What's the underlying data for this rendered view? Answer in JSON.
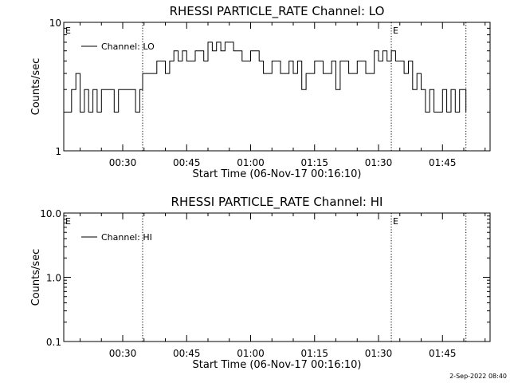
{
  "timestamp": "2-Sep-2022 08:40",
  "chart_data": [
    {
      "type": "line",
      "title": "RHESSI PARTICLE_RATE Channel: LO",
      "xlabel": "Start Time (06-Nov-17 00:16:10)",
      "ylabel": "Counts/sec",
      "y_scale": "log",
      "ylim": [
        1,
        10
      ],
      "y_ticks": [
        "1",
        "10"
      ],
      "xlim": [
        "00:16:10",
        "01:56:10"
      ],
      "x_ticks": [
        "00:30",
        "00:45",
        "01:00",
        "01:15",
        "01:30",
        "01:45"
      ],
      "x_tick_values": [
        "00:30",
        "00:45",
        "01:00",
        "01:15",
        "01:30",
        "01:45"
      ],
      "vlines": [
        "00:34:40",
        "01:33:00",
        "01:50:30"
      ],
      "markers": [
        {
          "label": "E",
          "x": "00:16:10"
        },
        {
          "label": "E",
          "x": "01:33:00"
        }
      ],
      "legend": {
        "position": "top-left",
        "entries": [
          "Channel: LO"
        ]
      },
      "series": [
        {
          "name": "Channel: LO",
          "points": [
            [
              "00:16:10",
              2
            ],
            [
              "00:18:00",
              3
            ],
            [
              "00:19:00",
              4
            ],
            [
              "00:20:00",
              2
            ],
            [
              "00:21:00",
              3
            ],
            [
              "00:22:00",
              2
            ],
            [
              "00:23:00",
              3
            ],
            [
              "00:24:00",
              2
            ],
            [
              "00:25:00",
              3
            ],
            [
              "00:28:00",
              2
            ],
            [
              "00:29:00",
              3
            ],
            [
              "00:33:00",
              2
            ],
            [
              "00:34:00",
              3
            ],
            [
              "00:34:40",
              4
            ],
            [
              "00:38:00",
              5
            ],
            [
              "00:40:00",
              4
            ],
            [
              "00:41:00",
              5
            ],
            [
              "00:42:00",
              6
            ],
            [
              "00:43:00",
              5
            ],
            [
              "00:44:00",
              6
            ],
            [
              "00:45:00",
              5
            ],
            [
              "00:47:00",
              6
            ],
            [
              "00:49:00",
              5
            ],
            [
              "00:50:00",
              7
            ],
            [
              "00:51:00",
              6
            ],
            [
              "00:52:00",
              7
            ],
            [
              "00:53:00",
              6
            ],
            [
              "00:54:00",
              7
            ],
            [
              "00:56:00",
              6
            ],
            [
              "00:58:00",
              5
            ],
            [
              "01:00:00",
              6
            ],
            [
              "01:02:00",
              5
            ],
            [
              "01:03:00",
              4
            ],
            [
              "01:05:00",
              5
            ],
            [
              "01:07:00",
              4
            ],
            [
              "01:09:00",
              5
            ],
            [
              "01:10:00",
              4
            ],
            [
              "01:11:00",
              5
            ],
            [
              "01:12:00",
              3
            ],
            [
              "01:13:00",
              4
            ],
            [
              "01:15:00",
              5
            ],
            [
              "01:17:00",
              4
            ],
            [
              "01:19:00",
              5
            ],
            [
              "01:20:00",
              3
            ],
            [
              "01:21:00",
              5
            ],
            [
              "01:23:00",
              4
            ],
            [
              "01:25:00",
              5
            ],
            [
              "01:27:00",
              4
            ],
            [
              "01:29:00",
              6
            ],
            [
              "01:30:00",
              5
            ],
            [
              "01:31:00",
              6
            ],
            [
              "01:32:00",
              5
            ],
            [
              "01:33:00",
              6
            ],
            [
              "01:34:00",
              5
            ],
            [
              "01:36:00",
              4
            ],
            [
              "01:37:00",
              5
            ],
            [
              "01:38:00",
              3
            ],
            [
              "01:39:00",
              4
            ],
            [
              "01:40:00",
              3
            ],
            [
              "01:41:00",
              2
            ],
            [
              "01:42:00",
              3
            ],
            [
              "01:43:00",
              2
            ],
            [
              "01:45:00",
              3
            ],
            [
              "01:46:00",
              2
            ],
            [
              "01:47:00",
              3
            ],
            [
              "01:48:00",
              2
            ],
            [
              "01:49:00",
              3
            ],
            [
              "01:50:30",
              2
            ]
          ]
        }
      ]
    },
    {
      "type": "line",
      "title": "RHESSI PARTICLE_RATE Channel: HI",
      "xlabel": "Start Time (06-Nov-17 00:16:10)",
      "ylabel": "Counts/sec",
      "y_scale": "log",
      "ylim": [
        0.1,
        10
      ],
      "y_ticks": [
        "0.1",
        "1.0",
        "10.0"
      ],
      "xlim": [
        "00:16:10",
        "01:56:10"
      ],
      "x_ticks": [
        "00:30",
        "00:45",
        "01:00",
        "01:15",
        "01:30",
        "01:45"
      ],
      "x_tick_values": [
        "00:30",
        "00:45",
        "01:00",
        "01:15",
        "01:30",
        "01:45"
      ],
      "vlines": [
        "00:34:40",
        "01:33:00",
        "01:50:30"
      ],
      "markers": [
        {
          "label": "E",
          "x": "00:16:10"
        },
        {
          "label": "E",
          "x": "01:33:00"
        }
      ],
      "legend": {
        "position": "top-left",
        "entries": [
          "Channel: HI"
        ]
      },
      "series": [
        {
          "name": "Channel: HI",
          "points": []
        }
      ]
    }
  ]
}
